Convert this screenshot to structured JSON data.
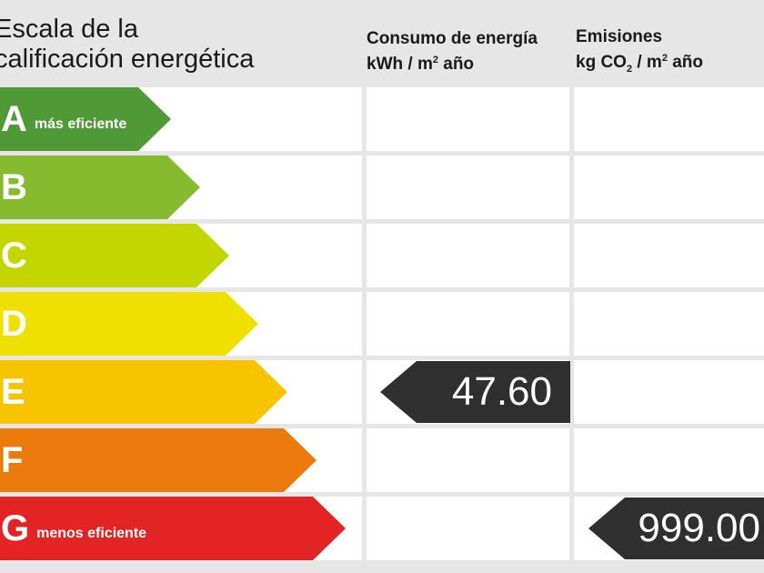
{
  "header": {
    "scale_title_line1": "Escala de la",
    "scale_title_line2": "calificación energética",
    "consumo_title": "Consumo de energía",
    "consumo_unit_pre": "kWh / m",
    "consumo_unit_sup": "2",
    "consumo_unit_post": " año",
    "emisiones_title": "Emisiones",
    "emisiones_unit_pre": "kg CO",
    "emisiones_unit_sub": "2",
    "emisiones_unit_mid": " / m",
    "emisiones_unit_sup": "2",
    "emisiones_unit_post": " año"
  },
  "scale": [
    {
      "letter": "A",
      "note": "más eficiente",
      "color": "#4f9a36"
    },
    {
      "letter": "B",
      "note": "",
      "color": "#87bb2f"
    },
    {
      "letter": "C",
      "note": "",
      "color": "#c4d600"
    },
    {
      "letter": "D",
      "note": "",
      "color": "#efe000"
    },
    {
      "letter": "E",
      "note": "",
      "color": "#f8c400"
    },
    {
      "letter": "F",
      "note": "",
      "color": "#ea7a0c"
    },
    {
      "letter": "G",
      "note": "menos eficiente",
      "color": "#e22424"
    }
  ],
  "ratings": {
    "consumo": {
      "class": "E",
      "value": "47.60"
    },
    "emisiones": {
      "class": "G",
      "value": "999.00"
    }
  },
  "colors": {
    "pointer": "#2f2f2f",
    "background": "#e6e6e6"
  }
}
